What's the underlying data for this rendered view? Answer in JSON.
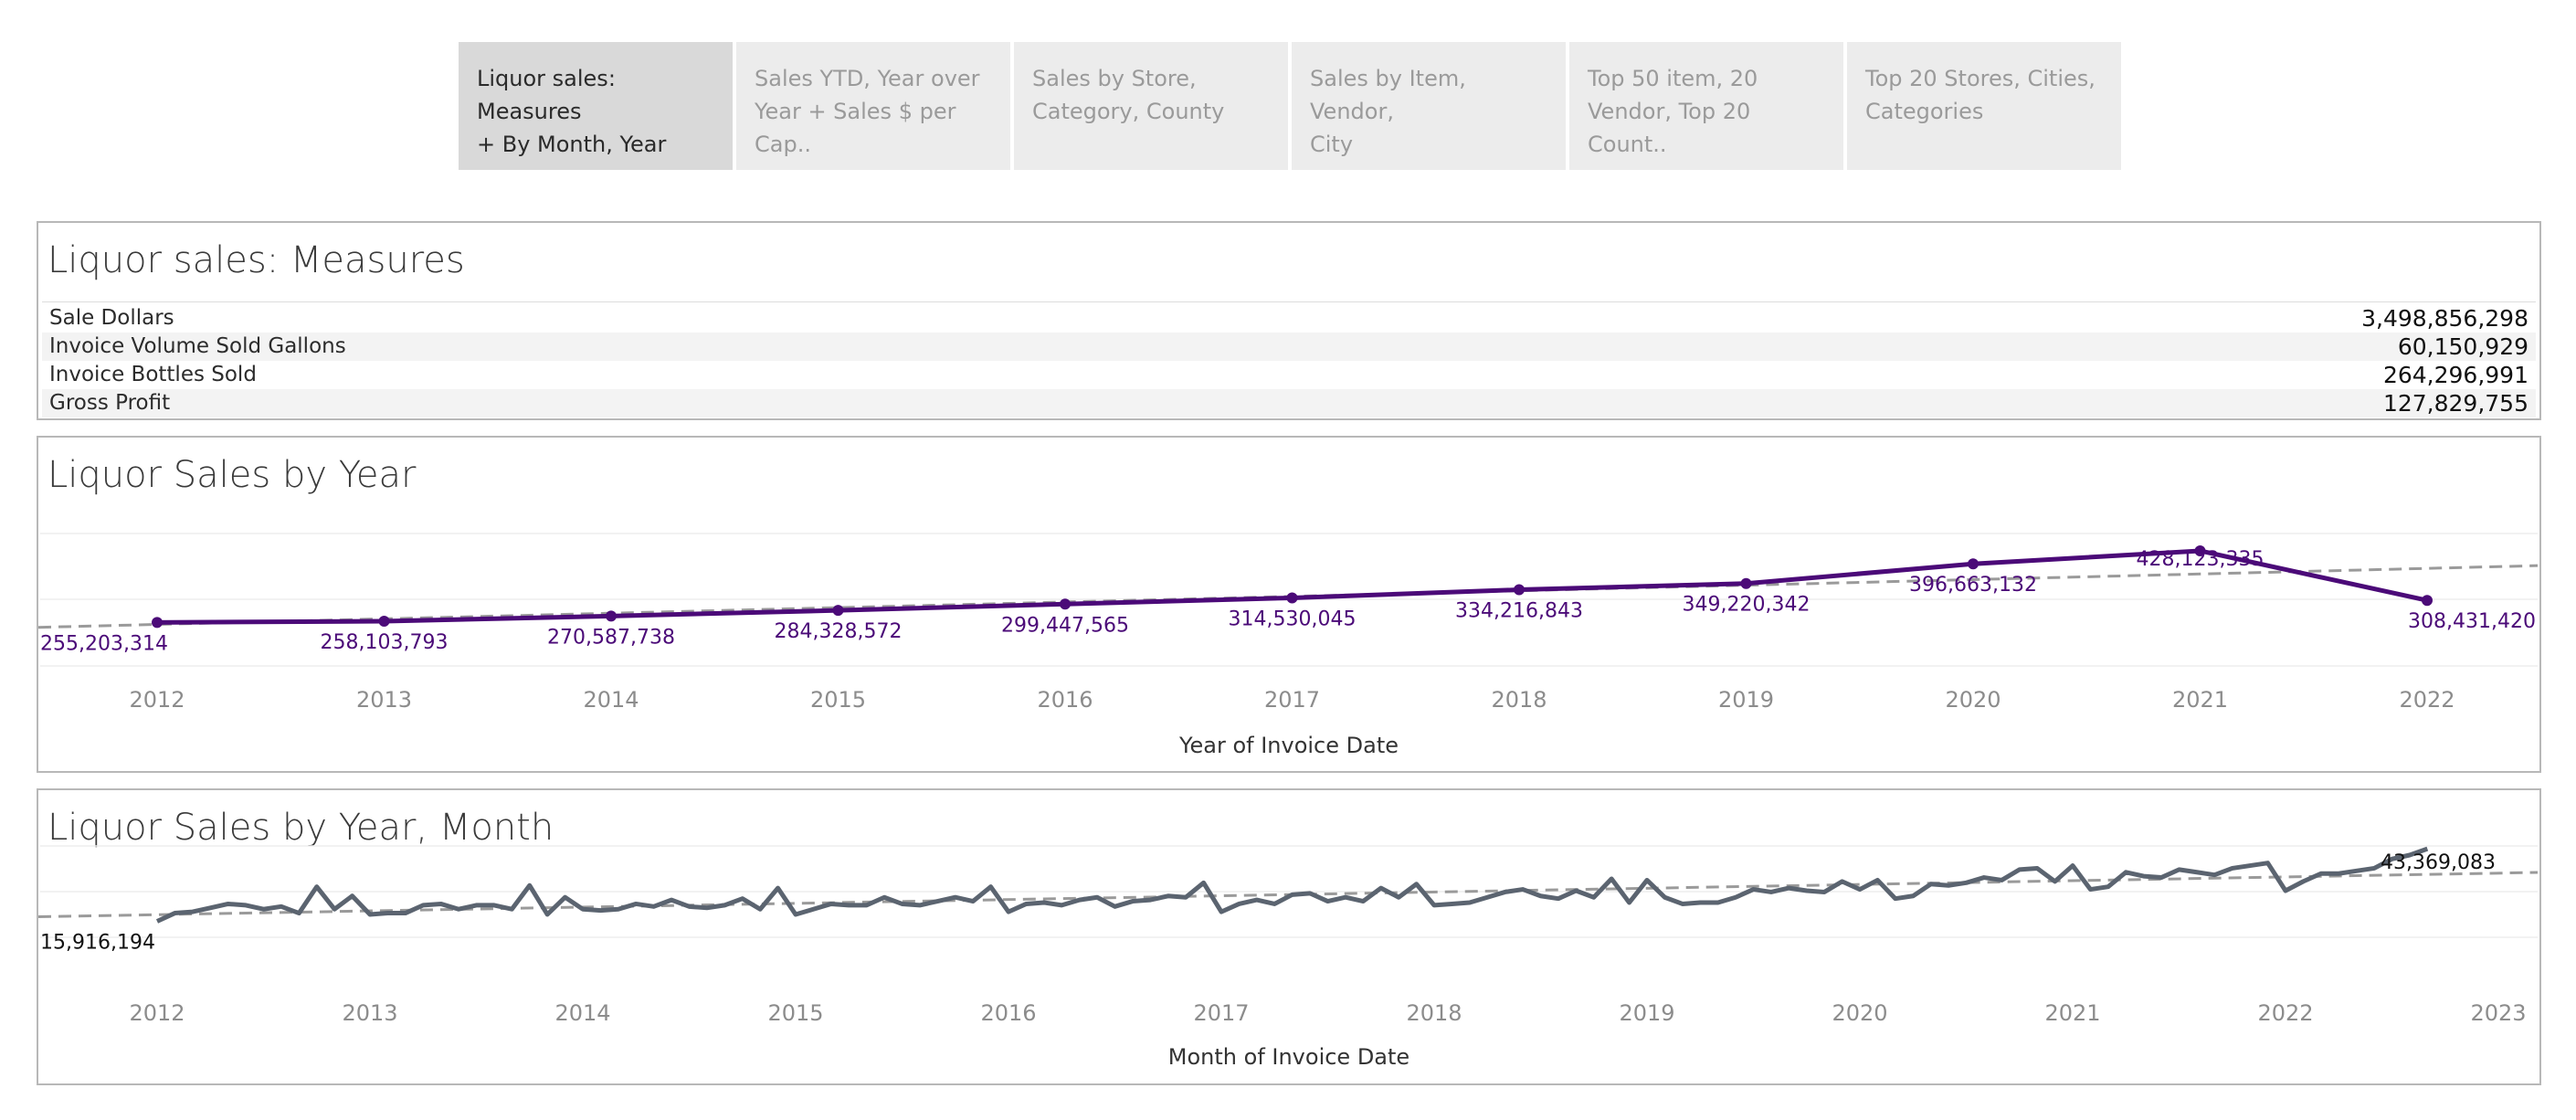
{
  "tabs": [
    {
      "line1": "Liquor sales: Measures",
      "line2": "+ By Month, Year",
      "active": true
    },
    {
      "line1": "Sales YTD, Year over",
      "line2": "Year + Sales $ per Cap..",
      "active": false
    },
    {
      "line1": "Sales by Store,",
      "line2": "Category, County",
      "active": false
    },
    {
      "line1": "Sales by Item, Vendor,",
      "line2": "City",
      "active": false
    },
    {
      "line1": "Top 50 item, 20",
      "line2": "Vendor, Top 20 Count..",
      "active": false
    },
    {
      "line1": "Top 20 Stores, Cities,",
      "line2": "Categories",
      "active": false
    }
  ],
  "measures": {
    "title": "Liquor sales: Measures",
    "rows": [
      {
        "label": "Sale Dollars",
        "value": "3,498,856,298"
      },
      {
        "label": "Invoice Volume Sold Gallons",
        "value": "60,150,929"
      },
      {
        "label": "Invoice Bottles Sold",
        "value": "264,296,991"
      },
      {
        "label": "Gross Profit",
        "value": "127,829,755"
      }
    ]
  },
  "colors": {
    "year_line": "#4b0a78",
    "month_line": "#5b6470",
    "trend": "#9a9a9a"
  },
  "chart_data": [
    {
      "type": "line",
      "title": "Liquor Sales by Year",
      "xlabel": "Year of Invoice Date",
      "ylabel": "",
      "categories": [
        "2012",
        "2013",
        "2014",
        "2015",
        "2016",
        "2017",
        "2018",
        "2019",
        "2020",
        "2021",
        "2022"
      ],
      "values": [
        255203314,
        258103793,
        270587738,
        284328572,
        299447565,
        314530045,
        334216843,
        349220342,
        396663132,
        428123335,
        308431420
      ],
      "value_labels": [
        "255,203,314",
        "258,103,793",
        "270,587,738",
        "284,328,572",
        "299,447,565",
        "314,530,045",
        "334,216,843",
        "349,220,342",
        "396,663,132",
        "428,123,335",
        "308,431,420"
      ],
      "trend_line": true,
      "legend": "none"
    },
    {
      "type": "line",
      "title": "Liquor Sales by Year, Month",
      "xlabel": "Month of Invoice Date",
      "ylabel": "",
      "x_ticks": [
        "2012",
        "2013",
        "2014",
        "2015",
        "2016",
        "2017",
        "2018",
        "2019",
        "2020",
        "2021",
        "2022",
        "2023"
      ],
      "x_start": "2012-01",
      "values": [
        15916194,
        19000000,
        19500000,
        21000000,
        22500000,
        22000000,
        20500000,
        21500000,
        19000000,
        29000000,
        20500000,
        25500000,
        18500000,
        19000000,
        19000000,
        22000000,
        22500000,
        20500000,
        22000000,
        22000000,
        20500000,
        29500000,
        18500000,
        25000000,
        20500000,
        20000000,
        20500000,
        22500000,
        21500000,
        24000000,
        21500000,
        21000000,
        22000000,
        24500000,
        20500000,
        28500000,
        18500000,
        20500000,
        22500000,
        22000000,
        22000000,
        25000000,
        22500000,
        22000000,
        23500000,
        25000000,
        23500000,
        29000000,
        19500000,
        22500000,
        23000000,
        22000000,
        24000000,
        25000000,
        21500000,
        23500000,
        24000000,
        25500000,
        25000000,
        30500000,
        19500000,
        22500000,
        24000000,
        22500000,
        26000000,
        26500000,
        23500000,
        25000000,
        23500000,
        28500000,
        25000000,
        30000000,
        22000000,
        22500000,
        23000000,
        25000000,
        27000000,
        28000000,
        25500000,
        24500000,
        27500000,
        25000000,
        32000000,
        23000000,
        31500000,
        25000000,
        22500000,
        23000000,
        23000000,
        25000000,
        28000000,
        27000000,
        28500000,
        27500000,
        27000000,
        31000000,
        28000000,
        31500000,
        24500000,
        25500000,
        30000000,
        29500000,
        30500000,
        32500000,
        31500000,
        35500000,
        36000000,
        31000000,
        37000000,
        28000000,
        29000000,
        34500000,
        33000000,
        32500000,
        35500000,
        34500000,
        33500000,
        36000000,
        37000000,
        38000000,
        27500000,
        31000000,
        34000000,
        34000000,
        35000000,
        36000000,
        39500000,
        41000000,
        43369083
      ],
      "first_label": "15,916,194",
      "last_label": "43,369,083",
      "trend_line": true,
      "legend": "none"
    }
  ]
}
